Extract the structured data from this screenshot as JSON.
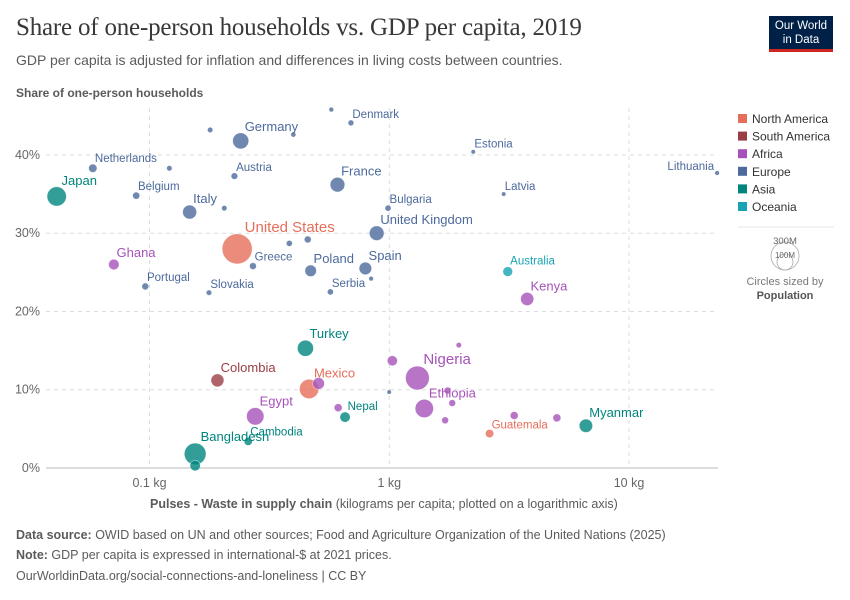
{
  "header": {
    "title": "Share of one-person households vs. GDP per capita, 2019",
    "subtitle": "GDP per capita is adjusted for inflation and differences in living costs between countries.",
    "logo_line1": "Our World",
    "logo_line2": "in Data"
  },
  "footer": {
    "source_label": "Data source:",
    "source_text": " OWID based on UN and other sources; Food and Agriculture Organization of the United Nations (2025)",
    "note_label": "Note:",
    "note_text": " GDP per capita is expressed in international-$ at 2021 prices.",
    "url": "OurWorldinData.org/social-connections-and-loneliness | CC BY"
  },
  "chart_data": {
    "type": "scatter",
    "title": "Share of one-person households vs. GDP per capita, 2019",
    "ylabel": "Share of one-person households",
    "xlabel_bold": "Pulses - Waste in supply chain",
    "xlabel_rest": " (kilograms per capita; plotted on a logarithmic axis)",
    "xscale": "log",
    "xlim": [
      0.037,
      23.5
    ],
    "ylim": [
      0,
      46
    ],
    "xticks": [
      {
        "value": 0.1,
        "label": "0.1 kg"
      },
      {
        "value": 1,
        "label": "1 kg"
      },
      {
        "value": 10,
        "label": "10 kg"
      }
    ],
    "yticks": [
      {
        "value": 0,
        "label": "0%"
      },
      {
        "value": 10,
        "label": "10%"
      },
      {
        "value": 20,
        "label": "20%"
      },
      {
        "value": 30,
        "label": "30%"
      },
      {
        "value": 40,
        "label": "40%"
      }
    ],
    "grid": true,
    "legend_position": "right",
    "legend": [
      {
        "name": "North America",
        "color": "#e56e5a"
      },
      {
        "name": "South America",
        "color": "#9a3d44"
      },
      {
        "name": "Africa",
        "color": "#a652ba"
      },
      {
        "name": "Europe",
        "color": "#4c6a9c"
      },
      {
        "name": "Asia",
        "color": "#00847e"
      },
      {
        "name": "Oceania",
        "color": "#18a3b3"
      }
    ],
    "size_legend": {
      "large_label": "300M",
      "small_label": "100M",
      "caption": "Circles sized by",
      "caption_bold": "Population"
    },
    "points": [
      {
        "name": "Japan",
        "label": true,
        "region": "Asia",
        "x": 0.041,
        "y": 34.7,
        "pop": 126
      },
      {
        "name": "Netherlands",
        "label": true,
        "region": "Europe",
        "x": 0.058,
        "y": 38.3,
        "pop": 17
      },
      {
        "name": "Belgium",
        "label": true,
        "region": "Europe",
        "x": 0.088,
        "y": 34.8,
        "pop": 11
      },
      {
        "name": "",
        "label": false,
        "region": "Europe",
        "x": 0.121,
        "y": 38.3,
        "pop": 5
      },
      {
        "name": "Italy",
        "label": true,
        "region": "Europe",
        "x": 0.147,
        "y": 32.7,
        "pop": 60
      },
      {
        "name": "",
        "label": false,
        "region": "Europe",
        "x": 0.179,
        "y": 43.2,
        "pop": 5
      },
      {
        "name": "",
        "label": false,
        "region": "Europe",
        "x": 0.205,
        "y": 33.2,
        "pop": 5
      },
      {
        "name": "Germany",
        "label": true,
        "region": "Europe",
        "x": 0.24,
        "y": 41.8,
        "pop": 83
      },
      {
        "name": "Austria",
        "label": true,
        "region": "Europe",
        "x": 0.226,
        "y": 37.3,
        "pop": 9
      },
      {
        "name": "United States",
        "label": true,
        "region": "North America",
        "x": 0.232,
        "y": 28.0,
        "pop": 330
      },
      {
        "name": "Ghana",
        "label": true,
        "region": "Africa",
        "x": 0.071,
        "y": 26.0,
        "pop": 31
      },
      {
        "name": "Portugal",
        "label": true,
        "region": "Europe",
        "x": 0.096,
        "y": 23.2,
        "pop": 10
      },
      {
        "name": "Slovakia",
        "label": true,
        "region": "Europe",
        "x": 0.177,
        "y": 22.4,
        "pop": 5
      },
      {
        "name": "Greece",
        "label": true,
        "region": "Europe",
        "x": 0.27,
        "y": 25.8,
        "pop": 10
      },
      {
        "name": "",
        "label": false,
        "region": "Europe",
        "x": 0.383,
        "y": 28.7,
        "pop": 7
      },
      {
        "name": "",
        "label": false,
        "region": "Europe",
        "x": 0.457,
        "y": 29.2,
        "pop": 10
      },
      {
        "name": "Poland",
        "label": true,
        "region": "Europe",
        "x": 0.47,
        "y": 25.2,
        "pop": 38
      },
      {
        "name": "",
        "label": false,
        "region": "Europe",
        "x": 0.398,
        "y": 42.6,
        "pop": 4
      },
      {
        "name": "",
        "label": false,
        "region": "Europe",
        "x": 0.573,
        "y": 45.8,
        "pop": 3
      },
      {
        "name": "Denmark",
        "label": true,
        "region": "Europe",
        "x": 0.692,
        "y": 44.1,
        "pop": 6
      },
      {
        "name": "France",
        "label": true,
        "region": "Europe",
        "x": 0.608,
        "y": 36.2,
        "pop": 67
      },
      {
        "name": "Bulgaria",
        "label": true,
        "region": "Europe",
        "x": 0.988,
        "y": 33.2,
        "pop": 7
      },
      {
        "name": "United Kingdom",
        "label": true,
        "region": "Europe",
        "x": 0.886,
        "y": 30.0,
        "pop": 67
      },
      {
        "name": "Spain",
        "label": true,
        "region": "Europe",
        "x": 0.795,
        "y": 25.5,
        "pop": 47
      },
      {
        "name": "",
        "label": false,
        "region": "Europe",
        "x": 0.84,
        "y": 24.2,
        "pop": 3
      },
      {
        "name": "Serbia",
        "label": true,
        "region": "Europe",
        "x": 0.568,
        "y": 22.5,
        "pop": 7
      },
      {
        "name": "Estonia",
        "label": true,
        "region": "Europe",
        "x": 2.24,
        "y": 40.4,
        "pop": 1.3
      },
      {
        "name": "Latvia",
        "label": true,
        "region": "Europe",
        "x": 3.0,
        "y": 35.0,
        "pop": 1.9
      },
      {
        "name": "Lithuania",
        "label": true,
        "region": "Europe",
        "x": 23.3,
        "y": 37.7,
        "pop": 2.8
      },
      {
        "name": "Australia",
        "label": true,
        "region": "Oceania",
        "x": 3.12,
        "y": 25.1,
        "pop": 25
      },
      {
        "name": "Kenya",
        "label": true,
        "region": "Africa",
        "x": 3.76,
        "y": 21.6,
        "pop": 52
      },
      {
        "name": "Turkey",
        "label": true,
        "region": "Asia",
        "x": 0.447,
        "y": 15.3,
        "pop": 83
      },
      {
        "name": "Colombia",
        "label": true,
        "region": "South America",
        "x": 0.192,
        "y": 11.2,
        "pop": 50
      },
      {
        "name": "Mexico",
        "label": true,
        "region": "North America",
        "x": 0.463,
        "y": 10.1,
        "pop": 127
      },
      {
        "name": "",
        "label": false,
        "region": "Africa",
        "x": 0.507,
        "y": 10.8,
        "pop": 40
      },
      {
        "name": "Egypt",
        "label": true,
        "region": "Africa",
        "x": 0.276,
        "y": 6.6,
        "pop": 100
      },
      {
        "name": "Cambodia",
        "label": true,
        "region": "Asia",
        "x": 0.258,
        "y": 3.4,
        "pop": 16
      },
      {
        "name": "Bangladesh",
        "label": true,
        "region": "Asia",
        "x": 0.155,
        "y": 1.8,
        "pop": 163
      },
      {
        "name": "",
        "label": false,
        "region": "Asia",
        "x": 0.155,
        "y": 0.3,
        "pop": 30
      },
      {
        "name": "Nepal",
        "label": true,
        "region": "Asia",
        "x": 0.654,
        "y": 6.5,
        "pop": 29
      },
      {
        "name": "",
        "label": false,
        "region": "Africa",
        "x": 0.612,
        "y": 7.7,
        "pop": 15
      },
      {
        "name": "",
        "label": false,
        "region": "Europe",
        "x": 0.999,
        "y": 9.7,
        "pop": 2
      },
      {
        "name": "",
        "label": false,
        "region": "Africa",
        "x": 1.03,
        "y": 13.7,
        "pop": 28
      },
      {
        "name": "Nigeria",
        "label": true,
        "region": "Africa",
        "x": 1.31,
        "y": 11.5,
        "pop": 200
      },
      {
        "name": "",
        "label": false,
        "region": "Africa",
        "x": 1.95,
        "y": 15.7,
        "pop": 5
      },
      {
        "name": "Ethiopia",
        "label": true,
        "region": "Africa",
        "x": 1.4,
        "y": 7.6,
        "pop": 112
      },
      {
        "name": "",
        "label": false,
        "region": "Africa",
        "x": 1.75,
        "y": 9.9,
        "pop": 10
      },
      {
        "name": "",
        "label": false,
        "region": "Africa",
        "x": 1.83,
        "y": 8.3,
        "pop": 10
      },
      {
        "name": "",
        "label": false,
        "region": "Africa",
        "x": 1.71,
        "y": 6.1,
        "pop": 10
      },
      {
        "name": "Guatemala",
        "label": true,
        "region": "North America",
        "x": 2.62,
        "y": 4.4,
        "pop": 17
      },
      {
        "name": "",
        "label": false,
        "region": "Africa",
        "x": 3.32,
        "y": 6.7,
        "pop": 15
      },
      {
        "name": "",
        "label": false,
        "region": "Africa",
        "x": 5.0,
        "y": 6.4,
        "pop": 15
      },
      {
        "name": "Myanmar",
        "label": true,
        "region": "Asia",
        "x": 6.61,
        "y": 5.4,
        "pop": 54
      }
    ]
  }
}
